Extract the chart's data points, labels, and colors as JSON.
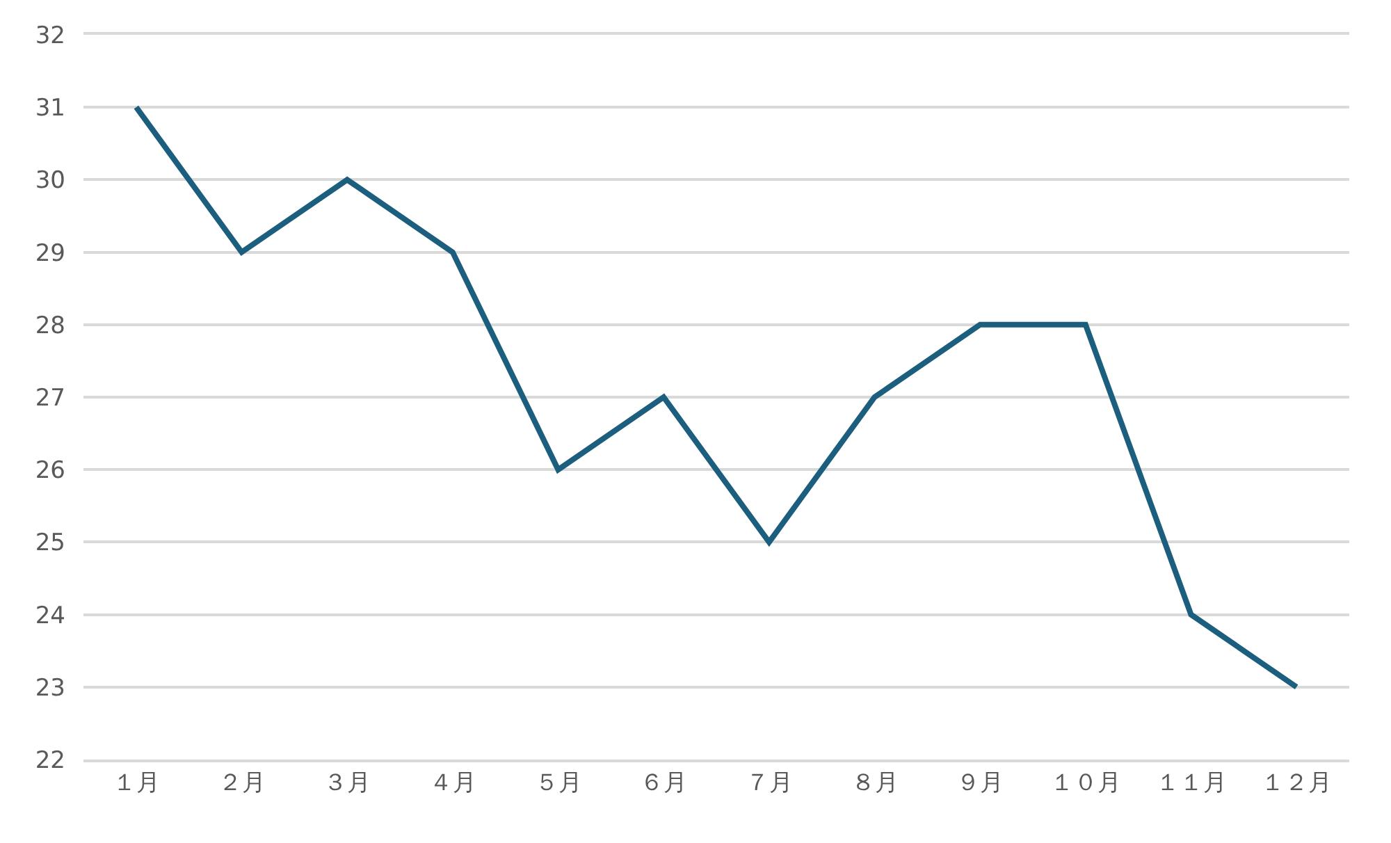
{
  "chart_data": {
    "type": "line",
    "categories": [
      "１月",
      "２月",
      "３月",
      "４月",
      "５月",
      "６月",
      "７月",
      "８月",
      "９月",
      "１０月",
      "１１月",
      "１２月"
    ],
    "series": [
      {
        "color": "#1b5e7e",
        "values": [
          31,
          29,
          30,
          29,
          26,
          27,
          25,
          27,
          28,
          28,
          24,
          23
        ]
      }
    ],
    "ylim": [
      22,
      32
    ],
    "yticks": [
      22,
      23,
      24,
      25,
      26,
      27,
      28,
      29,
      30,
      31,
      32
    ],
    "grid": "y",
    "marker": "none",
    "line_style": "solid"
  }
}
